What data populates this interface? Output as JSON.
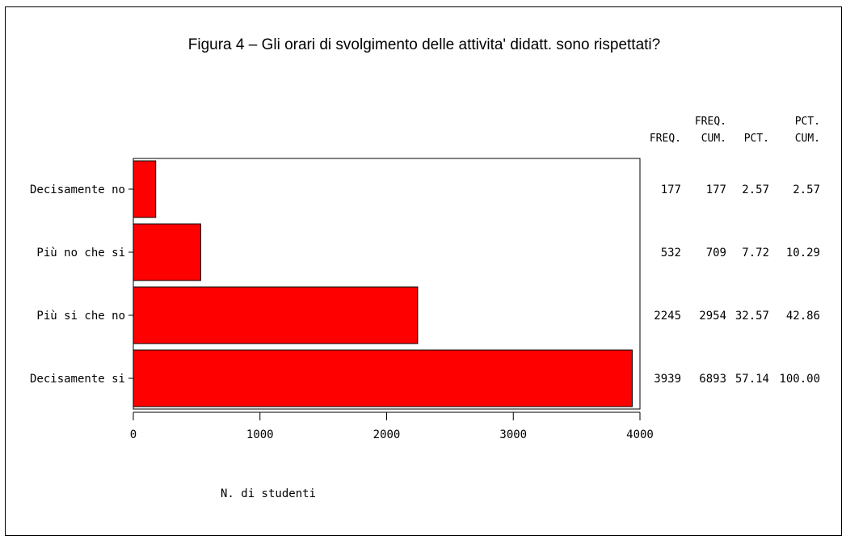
{
  "chart_data": {
    "type": "bar",
    "orientation": "horizontal",
    "title": "Figura 4 – Gli orari di svolgimento delle attivita' didatt. sono rispettati?",
    "xlabel": "N. di studenti",
    "categories": [
      "Decisamente no",
      "Più no che si",
      "Più si che no",
      "Decisamente si"
    ],
    "values": [
      177,
      532,
      2245,
      3939
    ],
    "xlim": [
      0,
      4000
    ],
    "xticks": [
      "0",
      "1000",
      "2000",
      "3000",
      "4000"
    ],
    "bar_color": "#ff0000",
    "table": {
      "headers": [
        {
          "line1": "",
          "line2": "FREQ."
        },
        {
          "line1": "FREQ.",
          "line2": "CUM."
        },
        {
          "line1": "",
          "line2": "PCT."
        },
        {
          "line1": "PCT.",
          "line2": "CUM."
        }
      ],
      "rows": [
        [
          "177",
          "177",
          "2.57",
          "2.57"
        ],
        [
          "532",
          "709",
          "7.72",
          "10.29"
        ],
        [
          "2245",
          "2954",
          "32.57",
          "42.86"
        ],
        [
          "3939",
          "6893",
          "57.14",
          "100.00"
        ]
      ]
    }
  }
}
